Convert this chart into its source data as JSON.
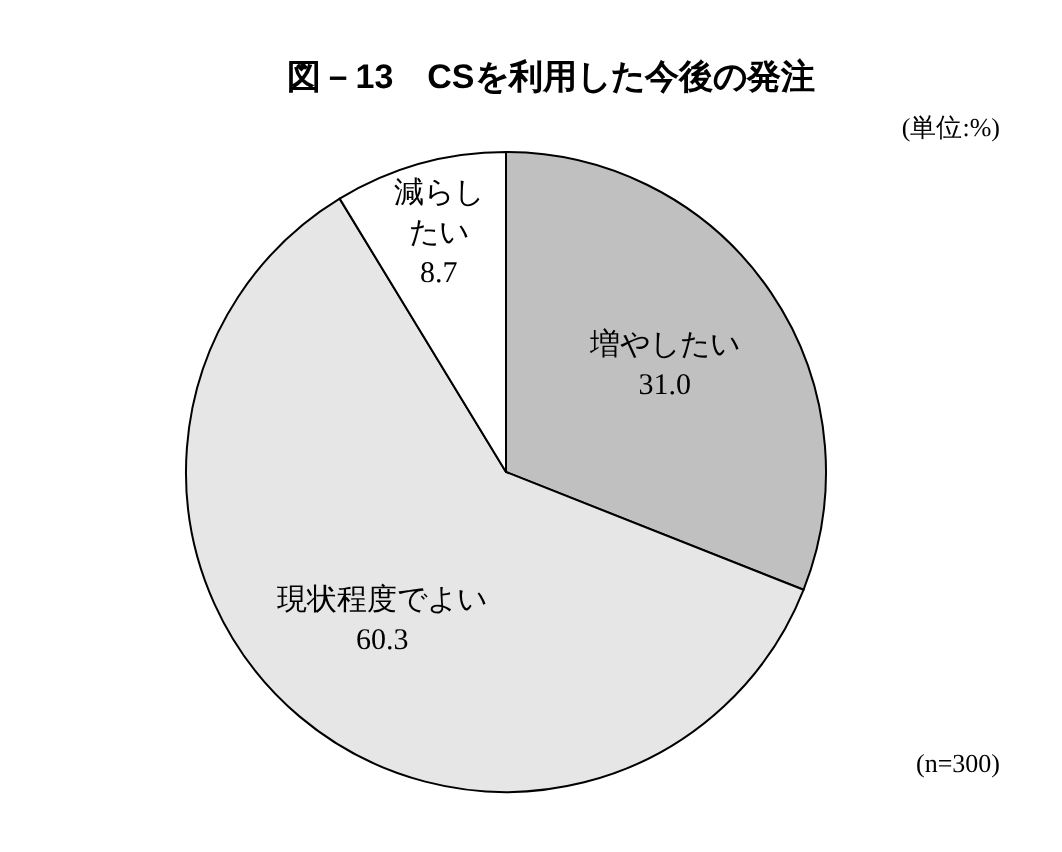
{
  "chart_data": {
    "type": "pie",
    "title": "図－13　CSを利用した今後の発注",
    "categories": [
      "増やしたい",
      "現状程度でよい",
      "減らしたい"
    ],
    "values": [
      31.0,
      60.3,
      8.7
    ],
    "colors": [
      "#c0c0c0",
      "#e6e6e6",
      "#ffffff"
    ],
    "value_labels": [
      "31.0",
      "60.3",
      "8.7"
    ],
    "annotations": [
      "(単位:%)",
      "(n=300)"
    ]
  }
}
